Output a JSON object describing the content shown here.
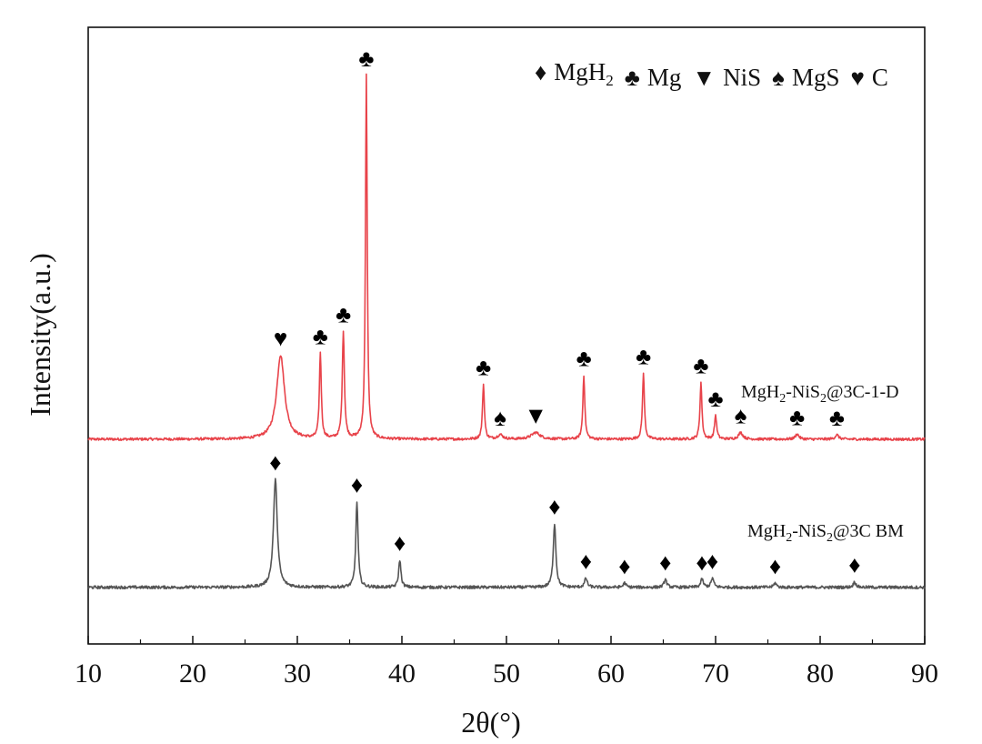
{
  "chart_data": {
    "type": "line",
    "title": "",
    "xlabel": "2θ(°)",
    "ylabel": "Intensity(a.u.)",
    "xlim": [
      10,
      90
    ],
    "x_ticks": [
      10,
      20,
      30,
      40,
      50,
      60,
      70,
      80,
      90
    ],
    "grid": false,
    "legend_position": "top-right",
    "legend": [
      {
        "symbol": "♦",
        "label": "MgH",
        "sub": "2"
      },
      {
        "symbol": "♣",
        "label": "Mg",
        "sub": ""
      },
      {
        "symbol": "▼",
        "label": "NiS",
        "sub": ""
      },
      {
        "symbol": "♠",
        "label": "MgS",
        "sub": ""
      },
      {
        "symbol": "♥",
        "label": "C",
        "sub": ""
      }
    ],
    "series": [
      {
        "name": "MgH2-NiS2@3C-1-D",
        "label_parts": [
          "MgH",
          "2",
          "-NiS",
          "2",
          "@3C-1-D"
        ],
        "color": "#e8434a",
        "baseline": 0.035,
        "noise": 0.0035,
        "peaks": [
          {
            "x": 28.4,
            "h": 0.23,
            "w": 0.45,
            "marker": "♥"
          },
          {
            "x": 32.2,
            "h": 0.235,
            "w": 0.11,
            "marker": "♣"
          },
          {
            "x": 34.4,
            "h": 0.295,
            "w": 0.12,
            "marker": "♣"
          },
          {
            "x": 36.6,
            "h": 0.995,
            "w": 0.1,
            "marker": "♣"
          },
          {
            "x": 47.8,
            "h": 0.15,
            "w": 0.11,
            "marker": "♣"
          },
          {
            "x": 49.4,
            "h": 0.012,
            "w": 0.3,
            "marker": "♠"
          },
          {
            "x": 52.8,
            "h": 0.018,
            "w": 0.5,
            "marker": "▼"
          },
          {
            "x": 57.4,
            "h": 0.175,
            "w": 0.11,
            "marker": "♣"
          },
          {
            "x": 63.1,
            "h": 0.18,
            "w": 0.11,
            "marker": "♣"
          },
          {
            "x": 68.6,
            "h": 0.155,
            "w": 0.11,
            "marker": "♣"
          },
          {
            "x": 70.0,
            "h": 0.065,
            "w": 0.12,
            "marker": "♣"
          },
          {
            "x": 72.4,
            "h": 0.018,
            "w": 0.25,
            "marker": "♠"
          },
          {
            "x": 77.8,
            "h": 0.014,
            "w": 0.2,
            "marker": "♣"
          },
          {
            "x": 81.6,
            "h": 0.012,
            "w": 0.2,
            "marker": "♣"
          }
        ]
      },
      {
        "name": "MgH2-NiS2@3C BM",
        "label_parts": [
          "MgH",
          "2",
          "-NiS",
          "2",
          "@3C BM"
        ],
        "color": "#555555",
        "baseline": -0.37,
        "noise": 0.004,
        "peaks": [
          {
            "x": 27.9,
            "h": 0.295,
            "w": 0.22,
            "marker": "♦"
          },
          {
            "x": 35.7,
            "h": 0.235,
            "w": 0.13,
            "marker": "♦"
          },
          {
            "x": 39.8,
            "h": 0.075,
            "w": 0.13,
            "marker": "♦"
          },
          {
            "x": 54.6,
            "h": 0.175,
            "w": 0.15,
            "marker": "♦"
          },
          {
            "x": 57.6,
            "h": 0.025,
            "w": 0.15,
            "marker": "♦"
          },
          {
            "x": 61.3,
            "h": 0.012,
            "w": 0.15,
            "marker": "♦"
          },
          {
            "x": 65.2,
            "h": 0.022,
            "w": 0.15,
            "marker": "♦"
          },
          {
            "x": 68.7,
            "h": 0.022,
            "w": 0.15,
            "marker": "♦"
          },
          {
            "x": 69.7,
            "h": 0.025,
            "w": 0.15,
            "marker": "♦"
          },
          {
            "x": 75.7,
            "h": 0.012,
            "w": 0.15,
            "marker": "♦"
          },
          {
            "x": 83.3,
            "h": 0.015,
            "w": 0.15,
            "marker": "♦"
          }
        ]
      }
    ]
  }
}
